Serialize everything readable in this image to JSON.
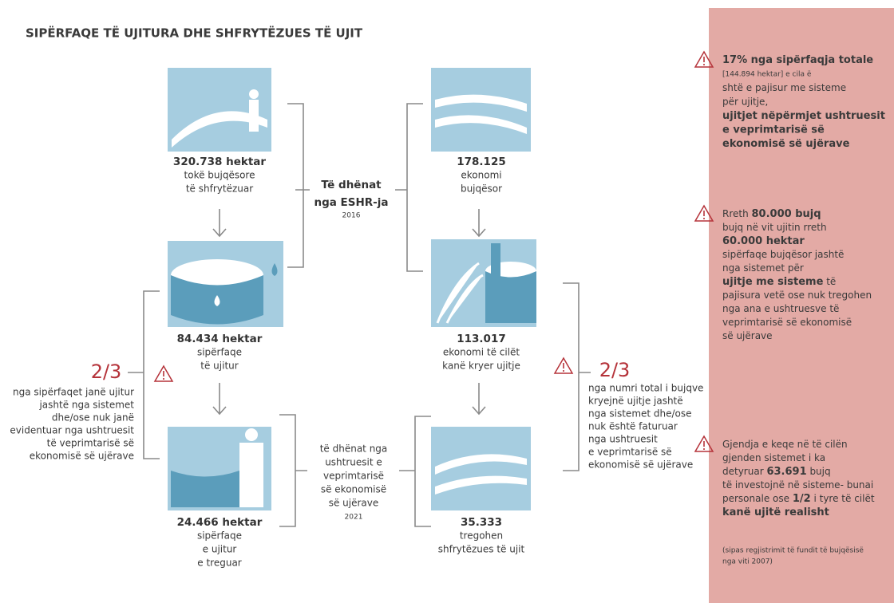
{
  "title": "SIPËRFAQE TË UJITURA DHE SHFRYTËZUES TË UJIT",
  "left_column": {
    "items": [
      {
        "value": "320.738 hektar",
        "lines": [
          "tokë bujqësore",
          "të shfrytëzuar"
        ]
      },
      {
        "value": "84.434 hektar",
        "lines": [
          "sipërfaqe",
          "të ujitur"
        ]
      },
      {
        "value": "24.466 hektar",
        "lines": [
          "sipërfaqe",
          "e ujitur",
          "e treguar"
        ]
      }
    ]
  },
  "right_column": {
    "items": [
      {
        "value": "178.125",
        "lines": [
          "ekonomi",
          "bujqësor"
        ]
      },
      {
        "value": "113.017",
        "lines": [
          "ekonomi të cilët",
          "kanë kryer ujitje"
        ]
      },
      {
        "value": "35.333",
        "lines": [
          "tregohen",
          "shfrytëzues të ujit"
        ]
      }
    ]
  },
  "sources": [
    {
      "lines": [
        "Të dhënat",
        "nga ESHR-ja"
      ],
      "year": "2016"
    },
    {
      "lines": [
        "të dhënat nga",
        "ushtruesit e",
        "veprimtarisë",
        "së ekonomisë",
        "së ujërave"
      ],
      "year": "2021"
    }
  ],
  "left_note": {
    "fraction": "2/3",
    "lines": [
      "nga sipërfaqet janë ujitur",
      "jashtë nga sistemet",
      "dhe/ose nuk janë",
      "evidentuar nga ushtruesit",
      "të veprimtarisë së",
      "ekonomisë së ujërave"
    ]
  },
  "right_note": {
    "fraction": "2/3",
    "lines": [
      "nga numri total i bujqve",
      "kryejnë ujitje jashtë",
      "nga sistemet dhe/ose",
      "nuk është faturuar",
      "nga ushtruesit",
      "e veprimtarisë së",
      "ekonomisë së ujërave"
    ]
  },
  "panel": {
    "notes": [
      {
        "lines": [
          [
            {
              "bold": "17% nga sipërfaqja totale"
            }
          ],
          [
            "[144.894 hektar] e cila ë"
          ],
          [
            "shtë e pajisur me sisteme"
          ],
          [
            "për ujitje,"
          ],
          [
            {
              "bold": "ujitjet nëpërmjet ushtruesit"
            }
          ],
          [
            {
              "bold": "e veprimtarisë së"
            }
          ],
          [
            {
              "bold": "ekonomisë së ujërave"
            }
          ]
        ]
      },
      {
        "lines": [
          [
            "Rreth ",
            {
              "bold": "80.000 bujq"
            }
          ],
          [
            "bujq në vit ujitin rreth"
          ],
          [
            {
              "bold": "60.000 hektar"
            }
          ],
          [
            "sipërfaqe bujqësor jashtë"
          ],
          [
            "nga sistemet për"
          ],
          [
            {
              "bold": "ujitje me sisteme"
            },
            " të"
          ],
          [
            "pajisura vetë ose nuk tregohen"
          ],
          [
            "nga ana e ushtruesve të"
          ],
          [
            "veprimtarisë së ekonomisë"
          ],
          [
            "së ujërave"
          ]
        ]
      },
      {
        "lines": [
          [
            "Gjendja e keqe në të cilën"
          ],
          [
            "gjenden sistemet i ka"
          ],
          [
            "detyruar ",
            {
              "bold": "63.691"
            },
            " bujq"
          ],
          [
            "të investojnë në sisteme- bunai"
          ],
          [
            "personale ose ",
            {
              "bold": "1/2"
            },
            " i tyre të cilët"
          ],
          [
            {
              "bold": "kanë ujitë realisht"
            }
          ]
        ]
      }
    ],
    "footnote": [
      "(sipas regjistrimit të fundit të bujqësisë",
      "nga viti 2007)"
    ]
  }
}
